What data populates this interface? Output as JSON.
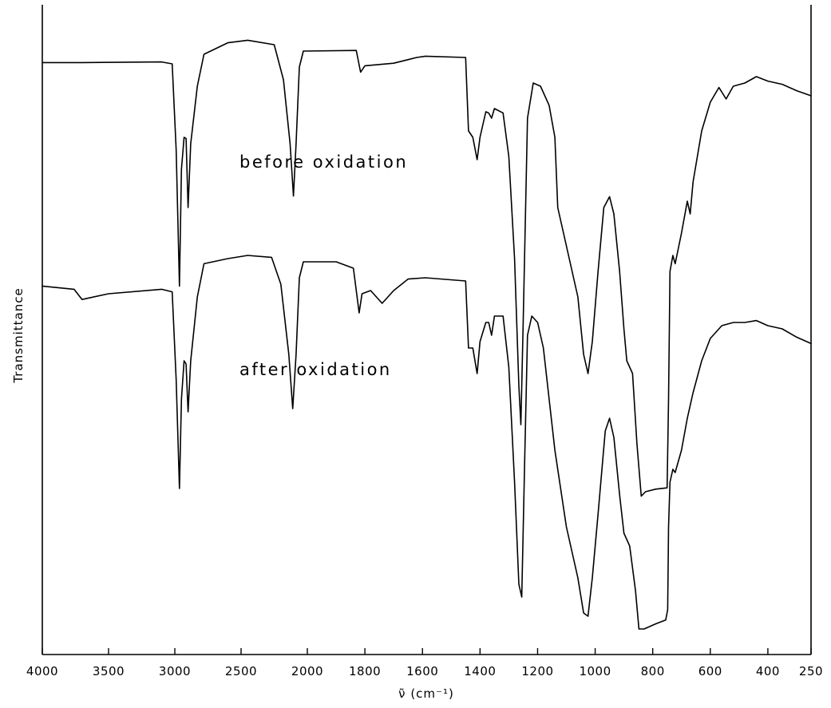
{
  "chart_data": {
    "type": "line",
    "xlabel": "ν̃ (cm⁻¹)",
    "ylabel": "Transmittance",
    "x_axis_segments": [
      {
        "from": 4000,
        "to": 2000,
        "ticks": [
          4000,
          3500,
          3000,
          2500,
          2000
        ]
      },
      {
        "from": 2000,
        "to": 250,
        "ticks": [
          2000,
          1800,
          1600,
          1400,
          1200,
          1000,
          800,
          600,
          400,
          250
        ]
      }
    ],
    "x_tick_labels": [
      "4000",
      "3500",
      "3000",
      "2500",
      "2000",
      "1800",
      "1600",
      "1400",
      "1200",
      "1000",
      "800",
      "600",
      "400",
      "250"
    ],
    "y_scale": "relative, no numeric ticks",
    "grid": false,
    "series": [
      {
        "name": "before oxidation",
        "points": [
          [
            4000,
            0.927
          ],
          [
            3700,
            0.927
          ],
          [
            3100,
            0.928
          ],
          [
            3020,
            0.925
          ],
          [
            2990,
            0.79
          ],
          [
            2965,
            0.577
          ],
          [
            2950,
            0.76
          ],
          [
            2930,
            0.81
          ],
          [
            2915,
            0.808
          ],
          [
            2900,
            0.7
          ],
          [
            2880,
            0.8
          ],
          [
            2830,
            0.89
          ],
          [
            2780,
            0.94
          ],
          [
            2600,
            0.958
          ],
          [
            2450,
            0.962
          ],
          [
            2250,
            0.955
          ],
          [
            2180,
            0.9
          ],
          [
            2130,
            0.8
          ],
          [
            2105,
            0.718
          ],
          [
            2085,
            0.8
          ],
          [
            2060,
            0.92
          ],
          [
            2030,
            0.945
          ],
          [
            1830,
            0.946
          ],
          [
            1815,
            0.912
          ],
          [
            1800,
            0.922
          ],
          [
            1700,
            0.926
          ],
          [
            1620,
            0.935
          ],
          [
            1590,
            0.937
          ],
          [
            1450,
            0.935
          ],
          [
            1440,
            0.82
          ],
          [
            1425,
            0.81
          ],
          [
            1410,
            0.775
          ],
          [
            1400,
            0.81
          ],
          [
            1380,
            0.85
          ],
          [
            1370,
            0.848
          ],
          [
            1360,
            0.84
          ],
          [
            1350,
            0.855
          ],
          [
            1320,
            0.848
          ],
          [
            1300,
            0.78
          ],
          [
            1280,
            0.62
          ],
          [
            1265,
            0.42
          ],
          [
            1258,
            0.36
          ],
          [
            1250,
            0.52
          ],
          [
            1235,
            0.84
          ],
          [
            1215,
            0.895
          ],
          [
            1190,
            0.89
          ],
          [
            1160,
            0.86
          ],
          [
            1140,
            0.81
          ],
          [
            1130,
            0.7
          ],
          [
            1100,
            0.64
          ],
          [
            1060,
            0.56
          ],
          [
            1040,
            0.47
          ],
          [
            1025,
            0.44
          ],
          [
            1010,
            0.49
          ],
          [
            990,
            0.6
          ],
          [
            970,
            0.7
          ],
          [
            950,
            0.717
          ],
          [
            935,
            0.69
          ],
          [
            915,
            0.6
          ],
          [
            900,
            0.51
          ],
          [
            890,
            0.46
          ],
          [
            870,
            0.44
          ],
          [
            855,
            0.33
          ],
          [
            840,
            0.248
          ],
          [
            825,
            0.255
          ],
          [
            790,
            0.259
          ],
          [
            750,
            0.261
          ],
          [
            745,
            0.4
          ],
          [
            740,
            0.6
          ],
          [
            730,
            0.625
          ],
          [
            722,
            0.612
          ],
          [
            700,
            0.66
          ],
          [
            680,
            0.71
          ],
          [
            670,
            0.69
          ],
          [
            660,
            0.74
          ],
          [
            630,
            0.82
          ],
          [
            600,
            0.865
          ],
          [
            570,
            0.888
          ],
          [
            545,
            0.87
          ],
          [
            520,
            0.89
          ],
          [
            480,
            0.895
          ],
          [
            440,
            0.905
          ],
          [
            400,
            0.898
          ],
          [
            350,
            0.893
          ],
          [
            300,
            0.883
          ],
          [
            250,
            0.875
          ]
        ]
      },
      {
        "name": "after oxidation",
        "points": [
          [
            4000,
            0.577
          ],
          [
            3760,
            0.572
          ],
          [
            3700,
            0.556
          ],
          [
            3500,
            0.565
          ],
          [
            3100,
            0.572
          ],
          [
            3020,
            0.568
          ],
          [
            2990,
            0.43
          ],
          [
            2965,
            0.26
          ],
          [
            2950,
            0.4
          ],
          [
            2930,
            0.46
          ],
          [
            2915,
            0.455
          ],
          [
            2900,
            0.38
          ],
          [
            2880,
            0.46
          ],
          [
            2830,
            0.56
          ],
          [
            2780,
            0.612
          ],
          [
            2600,
            0.62
          ],
          [
            2450,
            0.625
          ],
          [
            2270,
            0.622
          ],
          [
            2200,
            0.58
          ],
          [
            2140,
            0.47
          ],
          [
            2110,
            0.385
          ],
          [
            2085,
            0.47
          ],
          [
            2060,
            0.59
          ],
          [
            2030,
            0.615
          ],
          [
            1900,
            0.615
          ],
          [
            1840,
            0.605
          ],
          [
            1820,
            0.535
          ],
          [
            1810,
            0.565
          ],
          [
            1780,
            0.57
          ],
          [
            1740,
            0.55
          ],
          [
            1700,
            0.57
          ],
          [
            1650,
            0.588
          ],
          [
            1590,
            0.59
          ],
          [
            1450,
            0.585
          ],
          [
            1440,
            0.48
          ],
          [
            1425,
            0.48
          ],
          [
            1410,
            0.44
          ],
          [
            1400,
            0.49
          ],
          [
            1380,
            0.52
          ],
          [
            1370,
            0.52
          ],
          [
            1360,
            0.5
          ],
          [
            1350,
            0.53
          ],
          [
            1320,
            0.53
          ],
          [
            1300,
            0.45
          ],
          [
            1280,
            0.27
          ],
          [
            1265,
            0.11
          ],
          [
            1255,
            0.09
          ],
          [
            1245,
            0.3
          ],
          [
            1235,
            0.5
          ],
          [
            1220,
            0.53
          ],
          [
            1200,
            0.52
          ],
          [
            1180,
            0.48
          ],
          [
            1140,
            0.32
          ],
          [
            1100,
            0.2
          ],
          [
            1060,
            0.12
          ],
          [
            1040,
            0.065
          ],
          [
            1025,
            0.06
          ],
          [
            1010,
            0.12
          ],
          [
            990,
            0.22
          ],
          [
            965,
            0.35
          ],
          [
            950,
            0.37
          ],
          [
            935,
            0.34
          ],
          [
            915,
            0.25
          ],
          [
            900,
            0.19
          ],
          [
            880,
            0.17
          ],
          [
            860,
            0.1
          ],
          [
            848,
            0.04
          ],
          [
            830,
            0.04
          ],
          [
            790,
            0.048
          ],
          [
            755,
            0.054
          ],
          [
            748,
            0.07
          ],
          [
            745,
            0.2
          ],
          [
            740,
            0.27
          ],
          [
            730,
            0.29
          ],
          [
            722,
            0.285
          ],
          [
            700,
            0.32
          ],
          [
            680,
            0.37
          ],
          [
            660,
            0.41
          ],
          [
            630,
            0.46
          ],
          [
            600,
            0.495
          ],
          [
            560,
            0.515
          ],
          [
            520,
            0.52
          ],
          [
            480,
            0.52
          ],
          [
            440,
            0.523
          ],
          [
            400,
            0.515
          ],
          [
            350,
            0.51
          ],
          [
            300,
            0.497
          ],
          [
            250,
            0.487
          ]
        ]
      }
    ],
    "annotations": [
      "before oxidation",
      "after oxidation"
    ]
  }
}
